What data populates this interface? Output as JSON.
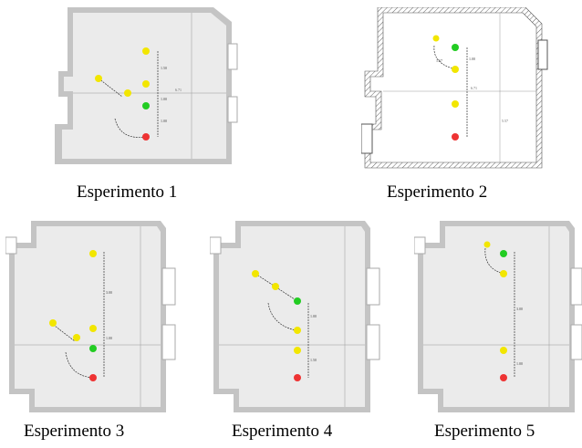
{
  "captions": {
    "p1": "Esperimento 1",
    "p2": "Esperimento 2",
    "p3": "Esperimento 3",
    "p4": "Esperimento 4",
    "p5": "Esperimento 5"
  },
  "colors": {
    "wall": "#c4c4c4",
    "floor": "#ebebeb",
    "point_yellow": "#f2e600",
    "point_green": "#22cc22",
    "point_red": "#ee3333",
    "dim_line": "#333333"
  },
  "dimension_labels": {
    "d100": "1.00",
    "d150": "1.50",
    "d167": "1.67",
    "d300": "3.00",
    "d671": "6.71",
    "d557": "5.57"
  }
}
